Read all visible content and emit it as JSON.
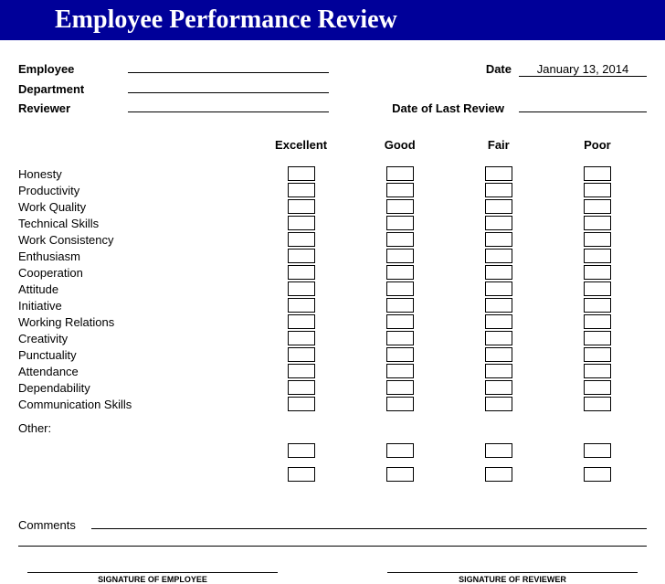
{
  "title": "Employee Performance Review",
  "fields": {
    "employee_label": "Employee",
    "employee_value": "",
    "department_label": "Department",
    "department_value": "",
    "reviewer_label": "Reviewer",
    "reviewer_value": "",
    "date_label": "Date",
    "date_value": "January 13, 2014",
    "last_review_label": "Date of Last Review",
    "last_review_value": ""
  },
  "rating_headers": [
    "Excellent",
    "Good",
    "Fair",
    "Poor"
  ],
  "criteria": [
    "Honesty",
    "Productivity",
    "Work Quality",
    "Technical Skills",
    "Work Consistency",
    "Enthusiasm",
    "Cooperation",
    "Attitude",
    "Initiative",
    "Working Relations",
    "Creativity",
    "Punctuality",
    "Attendance",
    "Dependability",
    "Communication Skills"
  ],
  "other_label": "Other:",
  "other_rows": 2,
  "comments_label": "Comments",
  "signatures": {
    "employee": "SIGNATURE OF EMPLOYEE",
    "reviewer": "SIGNATURE OF REVIEWER"
  },
  "colors": {
    "header_bg": "#000099",
    "header_text": "#ffffff",
    "page_bg": "#ffffff",
    "text": "#000000",
    "border": "#000000"
  }
}
